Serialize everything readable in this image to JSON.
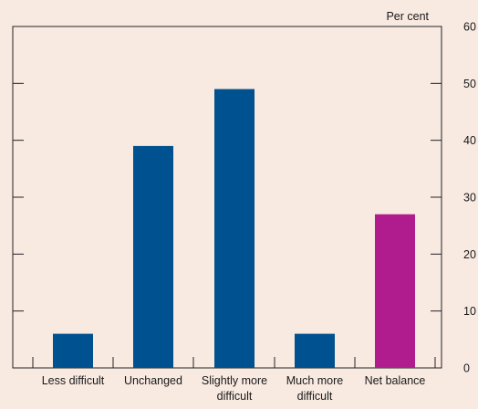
{
  "chart_data": {
    "type": "bar",
    "categories": [
      [
        "Less difficult"
      ],
      [
        "Unchanged"
      ],
      [
        "Slightly more",
        "difficult"
      ],
      [
        "Much more",
        "difficult"
      ],
      [
        "Net balance"
      ]
    ],
    "values": [
      6,
      39,
      49,
      6,
      27
    ],
    "bar_colors": [
      "#005190",
      "#005190",
      "#005190",
      "#005190",
      "#b01c8d"
    ],
    "unit_label": "Per cent",
    "yticks": [
      0,
      10,
      20,
      30,
      40,
      50,
      60
    ],
    "ylim": [
      0,
      60
    ],
    "grid": false,
    "title": "",
    "xlabel": "",
    "ylabel": ""
  }
}
